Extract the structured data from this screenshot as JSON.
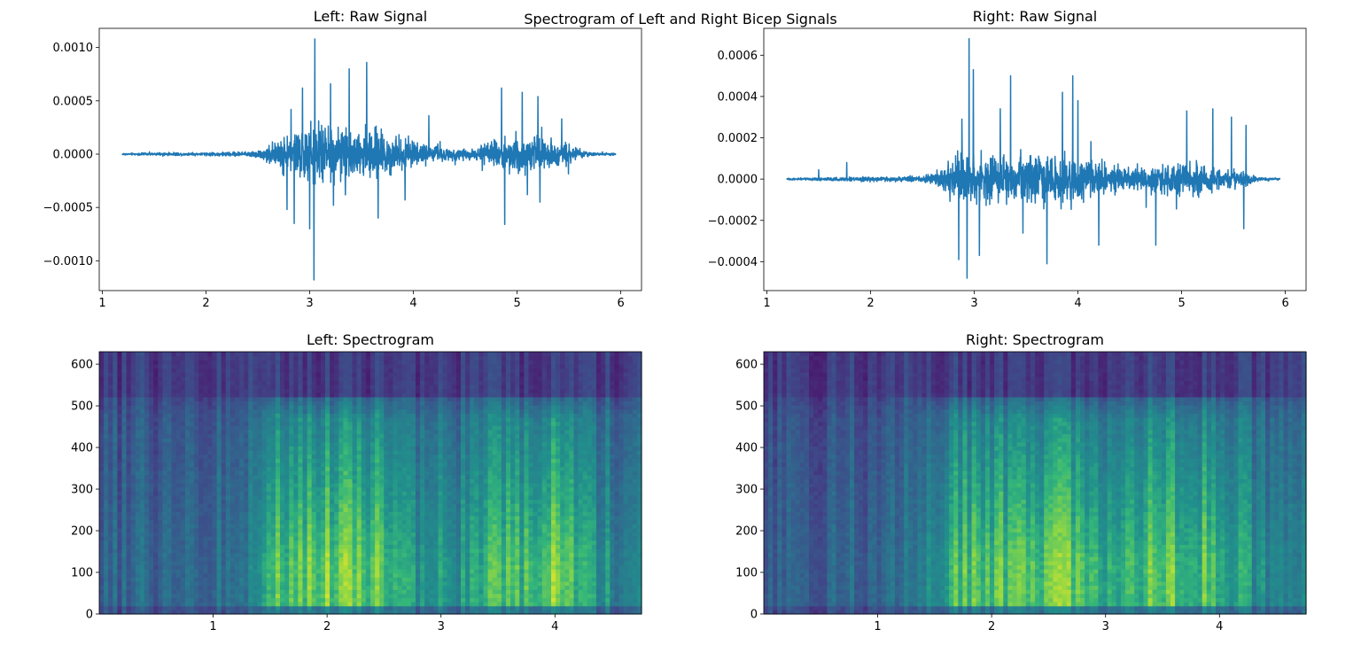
{
  "figure": {
    "title": "Spectrogram of Left and Right Bicep Signals",
    "line_color": "#1f77b4",
    "colormap": "viridis"
  },
  "chart_data": [
    {
      "id": "left-raw",
      "type": "line",
      "title": "Left: Raw Signal",
      "xlabel": "",
      "ylabel": "",
      "xlim": [
        0.97,
        6.2
      ],
      "ylim": [
        -0.00128,
        0.00118
      ],
      "xticks": [
        1,
        2,
        3,
        4,
        5,
        6
      ],
      "xtick_labels": [
        "1",
        "2",
        "3",
        "4",
        "5",
        "6"
      ],
      "yticks": [
        -0.001,
        -0.0005,
        0.0,
        0.0005,
        0.001
      ],
      "ytick_labels": [
        "−0.0010",
        "−0.0005",
        "0.0000",
        "0.0005",
        "0.0010"
      ],
      "grid": false,
      "x_range": [
        1.19,
        5.95
      ],
      "envelope": {
        "x": [
          1.19,
          1.6,
          2.0,
          2.3,
          2.5,
          2.6,
          2.75,
          2.9,
          3.05,
          3.3,
          3.55,
          3.8,
          4.05,
          4.3,
          4.55,
          4.7,
          4.85,
          5.05,
          5.2,
          5.35,
          5.5,
          5.6,
          5.75,
          5.95
        ],
        "amp": [
          1.2e-05,
          1.8e-05,
          2e-05,
          3e-05,
          4e-05,
          0.0001,
          0.00024,
          0.00032,
          0.0004,
          0.00036,
          0.00032,
          0.00024,
          0.00014,
          9e-05,
          7e-05,
          0.00012,
          0.00022,
          0.00024,
          0.00021,
          0.00018,
          0.00013,
          6e-05,
          2e-05,
          1.2e-05
        ]
      },
      "peaks": [
        {
          "x": 3.05,
          "y": 0.00108
        },
        {
          "x": 3.04,
          "y": -0.00118
        },
        {
          "x": 3.55,
          "y": 0.00086
        },
        {
          "x": 3.38,
          "y": 0.0008
        },
        {
          "x": 3.2,
          "y": 0.00066
        },
        {
          "x": 2.93,
          "y": 0.00062
        },
        {
          "x": 2.82,
          "y": 0.00042
        },
        {
          "x": 3.0,
          "y": -0.0007
        },
        {
          "x": 2.78,
          "y": -0.00052
        },
        {
          "x": 2.85,
          "y": -0.00065
        },
        {
          "x": 3.66,
          "y": -0.0006
        },
        {
          "x": 3.23,
          "y": -0.00048
        },
        {
          "x": 3.92,
          "y": -0.00043
        },
        {
          "x": 4.15,
          "y": 0.00036
        },
        {
          "x": 4.85,
          "y": 0.00062
        },
        {
          "x": 5.05,
          "y": 0.00058
        },
        {
          "x": 5.2,
          "y": 0.00054
        },
        {
          "x": 4.88,
          "y": -0.00066
        },
        {
          "x": 5.1,
          "y": -0.00038
        },
        {
          "x": 5.22,
          "y": -0.00045
        },
        {
          "x": 5.43,
          "y": 0.00033
        }
      ]
    },
    {
      "id": "right-raw",
      "type": "line",
      "title": "Right: Raw Signal",
      "xlabel": "",
      "ylabel": "",
      "xlim": [
        0.97,
        6.2
      ],
      "ylim": [
        -0.00054,
        0.00073
      ],
      "xticks": [
        1,
        2,
        3,
        4,
        5,
        6
      ],
      "xtick_labels": [
        "1",
        "2",
        "3",
        "4",
        "5",
        "6"
      ],
      "yticks": [
        -0.0004,
        -0.0002,
        0.0,
        0.0002,
        0.0004,
        0.0006
      ],
      "ytick_labels": [
        "−0.0004",
        "−0.0002",
        "0.0000",
        "0.0002",
        "0.0004",
        "0.0006"
      ],
      "grid": false,
      "x_range": [
        1.19,
        5.95
      ],
      "envelope": {
        "x": [
          1.19,
          1.5,
          1.8,
          2.2,
          2.5,
          2.6,
          2.75,
          2.9,
          3.1,
          3.3,
          3.5,
          3.7,
          3.9,
          4.1,
          4.3,
          4.45,
          4.6,
          4.8,
          5.0,
          5.2,
          5.45,
          5.6,
          5.75,
          5.95
        ],
        "amp": [
          6e-06,
          1e-05,
          1.4e-05,
          1.6e-05,
          2e-05,
          4e-05,
          0.00011,
          0.00016,
          0.00018,
          0.00016,
          0.00014,
          0.00016,
          0.00018,
          0.00013,
          0.0001,
          7e-05,
          8e-05,
          0.0001,
          0.00011,
          0.0001,
          7e-05,
          5e-05,
          1e-05,
          6e-06
        ]
      },
      "peaks": [
        {
          "x": 2.95,
          "y": 0.00068
        },
        {
          "x": 2.93,
          "y": -0.00048
        },
        {
          "x": 2.99,
          "y": 0.00053
        },
        {
          "x": 3.35,
          "y": 0.0005
        },
        {
          "x": 3.95,
          "y": 0.0005
        },
        {
          "x": 3.85,
          "y": 0.00042
        },
        {
          "x": 4.0,
          "y": 0.00038
        },
        {
          "x": 2.88,
          "y": 0.00029
        },
        {
          "x": 3.25,
          "y": 0.00034
        },
        {
          "x": 2.85,
          "y": -0.00039
        },
        {
          "x": 3.05,
          "y": -0.00037
        },
        {
          "x": 3.7,
          "y": -0.00041
        },
        {
          "x": 4.2,
          "y": -0.00032
        },
        {
          "x": 5.05,
          "y": 0.00033
        },
        {
          "x": 5.3,
          "y": 0.00034
        },
        {
          "x": 5.48,
          "y": 0.0003
        },
        {
          "x": 5.62,
          "y": 0.00026
        },
        {
          "x": 5.6,
          "y": -0.00024
        },
        {
          "x": 4.75,
          "y": -0.00032
        },
        {
          "x": 1.77,
          "y": 8e-05
        },
        {
          "x": 1.5,
          "y": 4.5e-05
        }
      ]
    },
    {
      "id": "left-spec",
      "type": "heatmap",
      "title": "Left: Spectrogram",
      "xlabel": "",
      "ylabel": "",
      "xlim": [
        0.0,
        4.76
      ],
      "ylim": [
        0,
        630
      ],
      "xticks": [
        1,
        2,
        3,
        4
      ],
      "xtick_labels": [
        "1",
        "2",
        "3",
        "4"
      ],
      "yticks": [
        0,
        100,
        200,
        300,
        400,
        500,
        600
      ],
      "ytick_labels": [
        "0",
        "100",
        "200",
        "300",
        "400",
        "500",
        "600"
      ],
      "grid": false,
      "time_bins": 120,
      "freq_bins": 64,
      "energy_profile": {
        "t": [
          0.0,
          0.8,
          1.3,
          1.5,
          1.9,
          2.4,
          2.8,
          3.2,
          3.6,
          4.0,
          4.4,
          4.76
        ],
        "level": [
          0.3,
          0.32,
          0.4,
          0.78,
          0.92,
          0.88,
          0.64,
          0.62,
          0.82,
          0.9,
          0.6,
          0.45
        ]
      }
    },
    {
      "id": "right-spec",
      "type": "heatmap",
      "title": "Right: Spectrogram",
      "xlabel": "",
      "ylabel": "",
      "xlim": [
        0.0,
        4.76
      ],
      "ylim": [
        0,
        630
      ],
      "xticks": [
        1,
        2,
        3,
        4
      ],
      "xtick_labels": [
        "1",
        "2",
        "3",
        "4"
      ],
      "yticks": [
        0,
        100,
        200,
        300,
        400,
        500,
        600
      ],
      "ytick_labels": [
        "0",
        "100",
        "200",
        "300",
        "400",
        "500",
        "600"
      ],
      "grid": false,
      "time_bins": 120,
      "freq_bins": 64,
      "energy_profile": {
        "t": [
          0.0,
          0.8,
          1.3,
          1.5,
          1.8,
          2.2,
          2.7,
          3.1,
          3.5,
          3.9,
          4.4,
          4.76
        ],
        "level": [
          0.28,
          0.3,
          0.38,
          0.62,
          0.86,
          0.84,
          0.92,
          0.74,
          0.84,
          0.82,
          0.55,
          0.42
        ]
      }
    }
  ]
}
